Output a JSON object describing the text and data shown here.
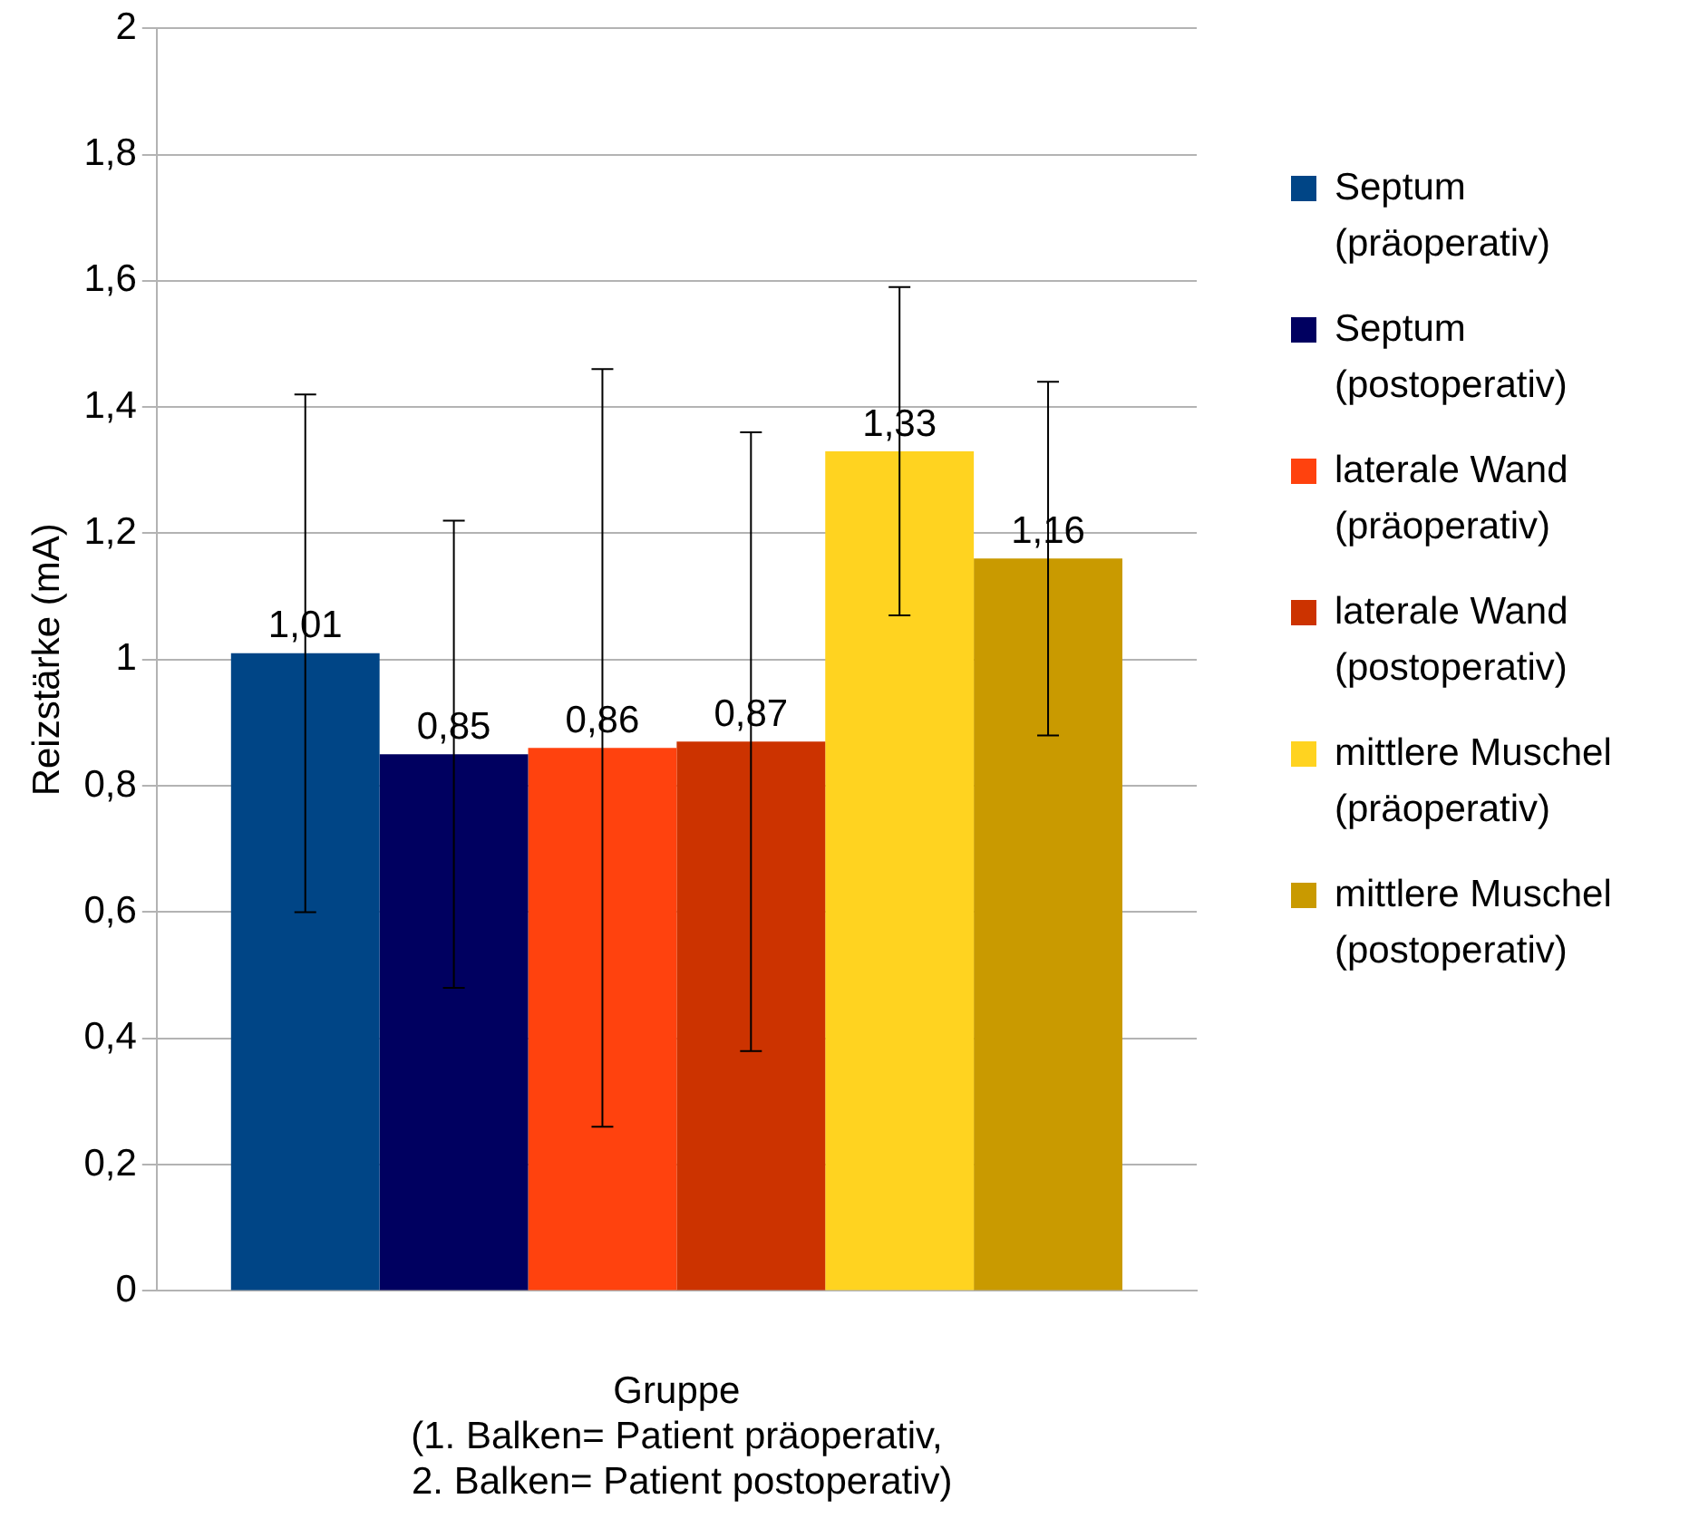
{
  "chart_data": {
    "type": "bar",
    "xlabel": "Gruppe\n(1. Balken= Patient präoperativ,\n 2. Balken= Patient postoperativ)",
    "ylabel": "Reizstärke (mA)",
    "categories": [
      null
    ],
    "series": [
      {
        "name": "Septum (präoperativ)",
        "color": "#004586",
        "values": [
          1.01
        ],
        "value_labels": [
          "1,01"
        ],
        "errors": [
          [
            0.6,
            1.42
          ]
        ]
      },
      {
        "name": "Septum (postoperativ)",
        "color": "#000060",
        "values": [
          0.85
        ],
        "value_labels": [
          "0,85"
        ],
        "errors": [
          [
            0.48,
            1.22
          ]
        ]
      },
      {
        "name": "laterale Wand (präoperativ)",
        "color": "#ff420e",
        "values": [
          0.86
        ],
        "value_labels": [
          "0,86"
        ],
        "errors": [
          [
            0.26,
            1.46
          ]
        ]
      },
      {
        "name": "laterale Wand (postoperativ)",
        "color": "#cc3300",
        "values": [
          0.87
        ],
        "value_labels": [
          "0,87"
        ],
        "errors": [
          [
            0.38,
            1.36
          ]
        ]
      },
      {
        "name": "mittlere Muschel (präoperativ)",
        "color": "#ffd320",
        "values": [
          1.33
        ],
        "value_labels": [
          "1,33"
        ],
        "errors": [
          [
            1.07,
            1.59
          ]
        ]
      },
      {
        "name": "mittlere Muschel (postoperativ)",
        "color": "#c99a00",
        "values": [
          1.16
        ],
        "value_labels": [
          "1,16"
        ],
        "errors": [
          [
            0.88,
            1.44
          ]
        ]
      }
    ],
    "ylim": [
      0,
      2
    ],
    "yticks": [
      0,
      {
        "value": 0.2,
        "label": "0,2"
      },
      {
        "value": 0.4,
        "label": "0,4"
      },
      {
        "value": 0.6,
        "label": "0,6"
      },
      {
        "value": 0.8,
        "label": "0,8"
      },
      1,
      {
        "value": 1.2,
        "label": "1,2"
      },
      {
        "value": 1.4,
        "label": "1,4"
      },
      {
        "value": 1.6,
        "label": "1,6"
      },
      {
        "value": 1.8,
        "label": "1,8"
      },
      2
    ],
    "grid": "y",
    "legend": "right"
  }
}
